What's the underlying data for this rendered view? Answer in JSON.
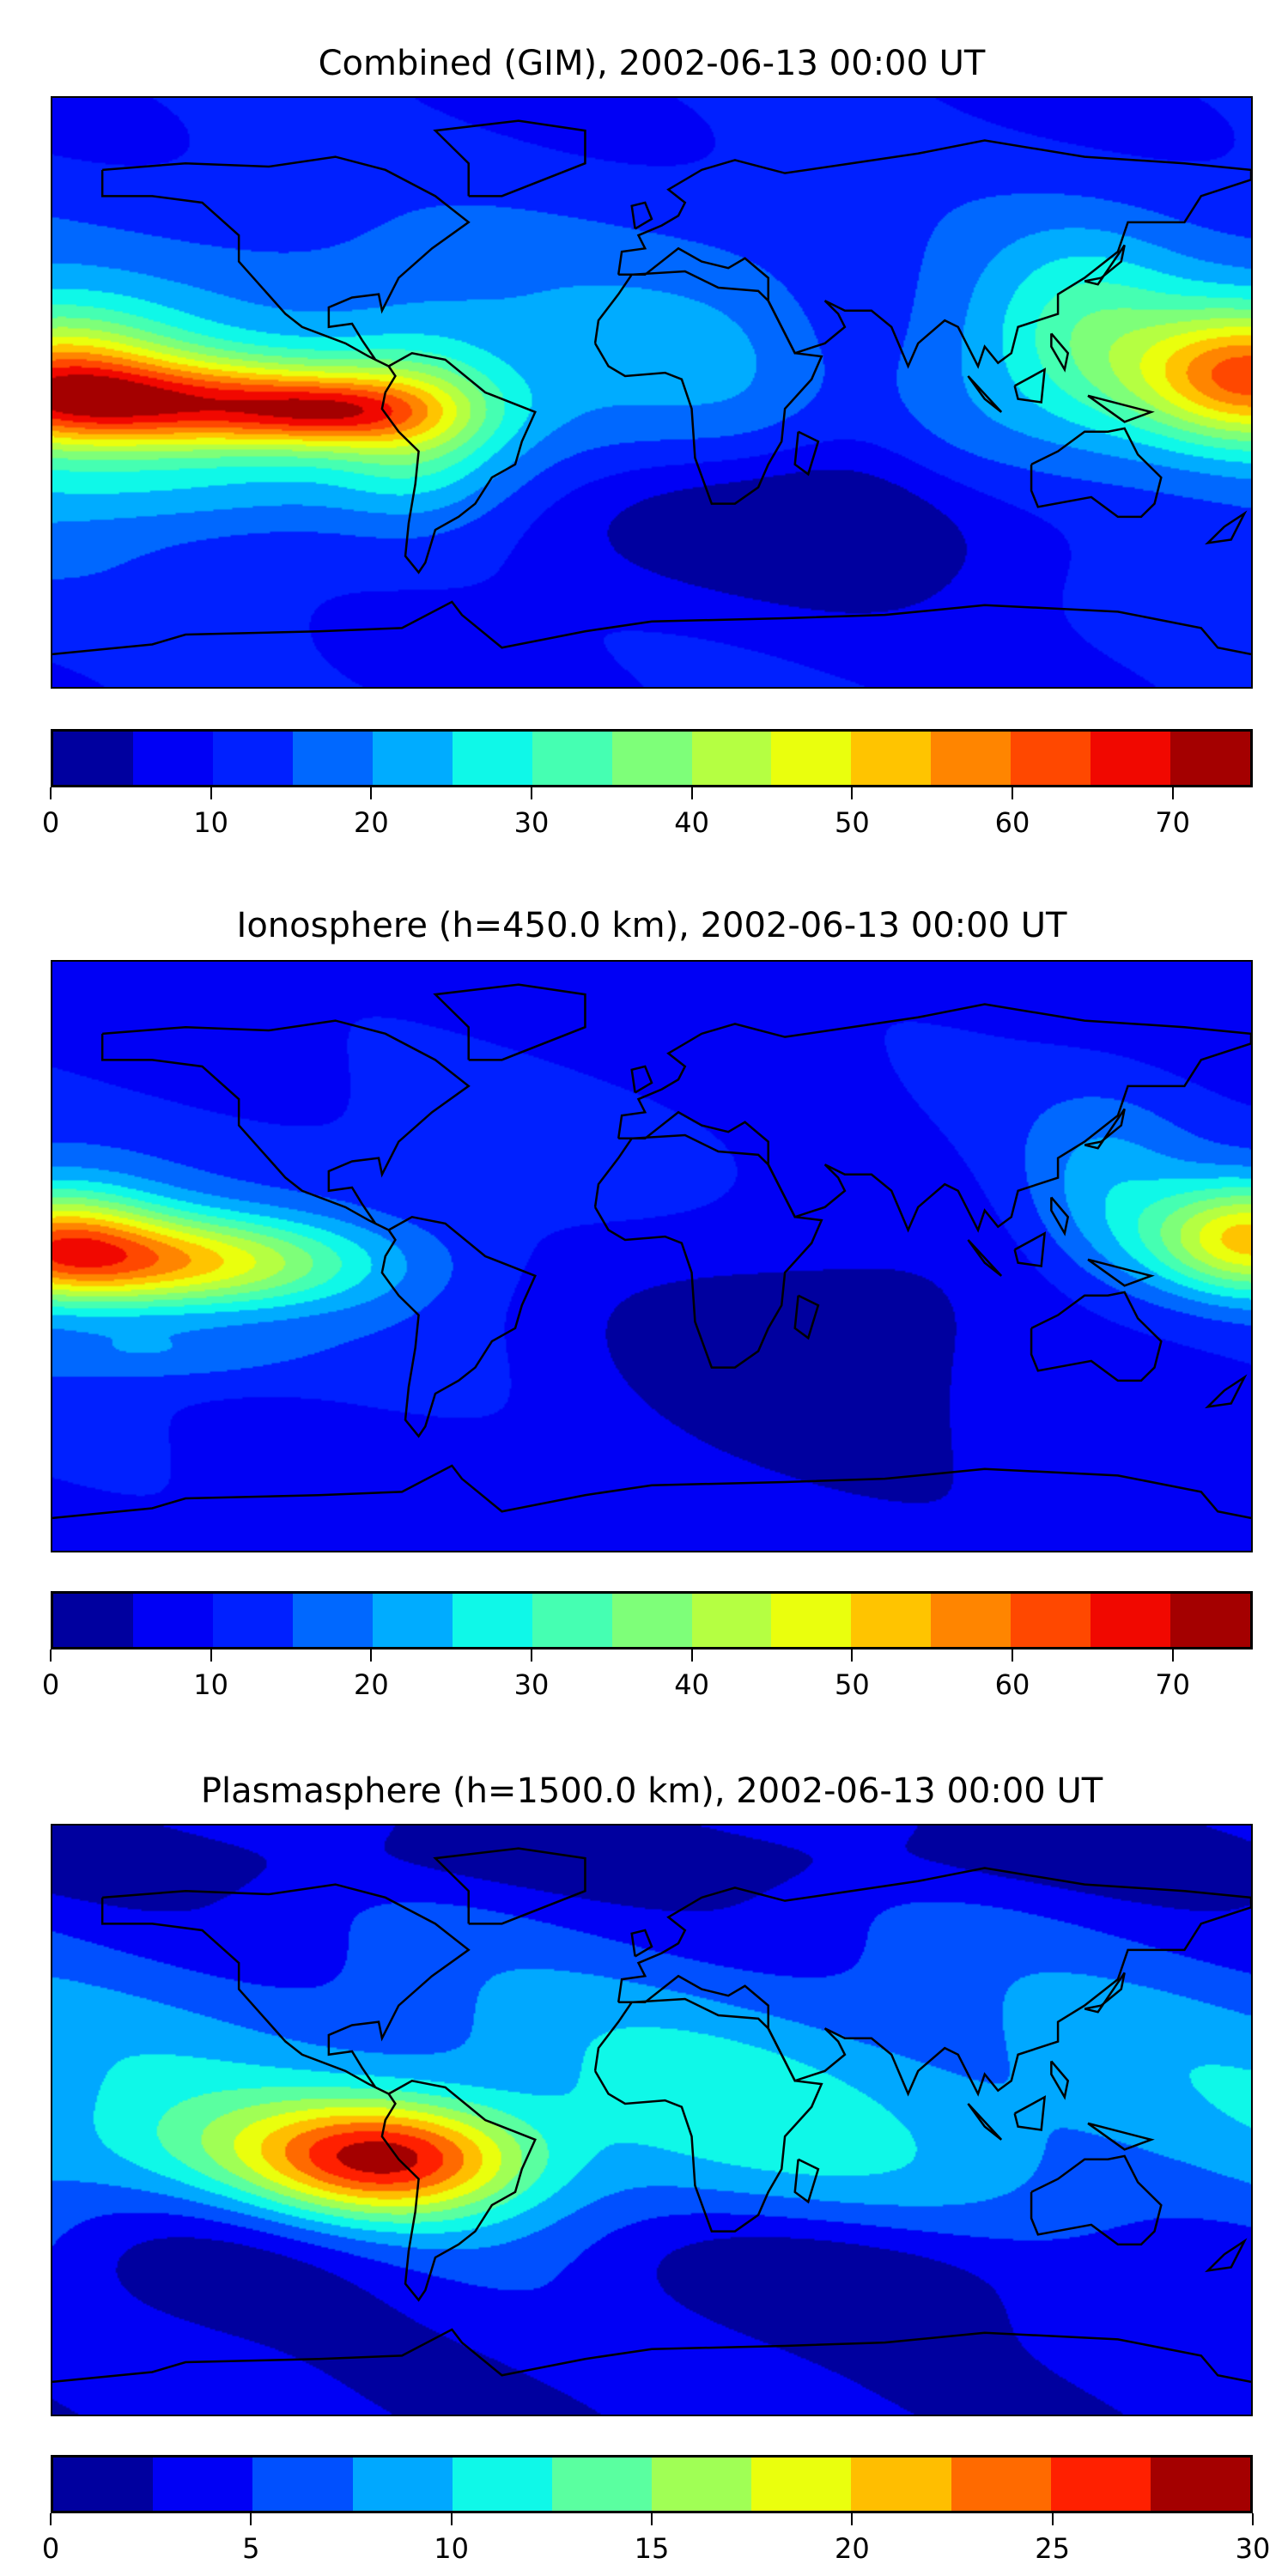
{
  "chart_data": [
    {
      "type": "heatmap",
      "title": "Combined (GIM), 2002-06-13 00:00 UT",
      "lon_range": [
        -180,
        180
      ],
      "lat_range": [
        -90,
        90
      ],
      "levels": [
        0,
        5,
        10,
        15,
        20,
        25,
        30,
        35,
        40,
        45,
        50,
        55,
        60,
        65,
        70,
        75
      ],
      "colors": [
        "#00009f",
        "#0000f5",
        "#0020ff",
        "#0068ff",
        "#00acff",
        "#0ff8e8",
        "#45ffb2",
        "#7eff79",
        "#b5ff42",
        "#eaff0d",
        "#ffc400",
        "#ff8500",
        "#ff4800",
        "#f10800",
        "#a40000"
      ],
      "colorbar_ticks": [
        "0",
        "10",
        "20",
        "30",
        "40",
        "50",
        "60",
        "70"
      ],
      "colorbar_tick_values": [
        0,
        10,
        20,
        30,
        40,
        50,
        60,
        70
      ],
      "field": {
        "base_equator": 22,
        "base_pole": 10,
        "features": [
          {
            "lon": -140,
            "lat": -4,
            "slon": 45,
            "slat": 10,
            "amp": 40
          },
          {
            "lon": -95,
            "lat": -6,
            "slon": 22,
            "slat": 7,
            "amp": 20
          },
          {
            "lon": -70,
            "lat": -10,
            "slon": 18,
            "slat": 18,
            "amp": 15
          },
          {
            "lon": 180,
            "lat": 5,
            "slon": 25,
            "slat": 14,
            "amp": 40
          },
          {
            "lon": -180,
            "lat": 5,
            "slon": 25,
            "slat": 14,
            "amp": 30
          },
          {
            "lon": 130,
            "lat": 20,
            "slon": 20,
            "slat": 20,
            "amp": 12
          },
          {
            "lon": 40,
            "lat": -40,
            "slon": 70,
            "slat": 18,
            "amp": -16
          },
          {
            "lon": 60,
            "lat": 0,
            "slon": 20,
            "slat": 30,
            "amp": -8
          },
          {
            "lon": -150,
            "lat": -30,
            "slon": 40,
            "slat": 8,
            "amp": 6
          }
        ]
      }
    },
    {
      "type": "heatmap",
      "title": "Ionosphere  (h=450.0 km), 2002-06-13 00:00 UT",
      "lon_range": [
        -180,
        180
      ],
      "lat_range": [
        -90,
        90
      ],
      "levels": [
        0,
        5,
        10,
        15,
        20,
        25,
        30,
        35,
        40,
        45,
        50,
        55,
        60,
        65,
        70,
        75
      ],
      "colors": [
        "#00009f",
        "#0000f5",
        "#0020ff",
        "#0068ff",
        "#00acff",
        "#0ff8e8",
        "#45ffb2",
        "#7eff79",
        "#b5ff42",
        "#eaff0d",
        "#ffc400",
        "#ff8500",
        "#ff4800",
        "#f10800",
        "#a40000"
      ],
      "colorbar_ticks": [
        "0",
        "10",
        "20",
        "30",
        "40",
        "50",
        "60",
        "70"
      ],
      "colorbar_tick_values": [
        0,
        10,
        20,
        30,
        40,
        50,
        60,
        70
      ],
      "field": {
        "base_equator": 14,
        "base_pole": 8,
        "features": [
          {
            "lon": -145,
            "lat": -2,
            "slon": 40,
            "slat": 10,
            "amp": 36
          },
          {
            "lon": 180,
            "lat": 5,
            "slon": 22,
            "slat": 12,
            "amp": 38
          },
          {
            "lon": -180,
            "lat": 5,
            "slon": 22,
            "slat": 12,
            "amp": 32
          },
          {
            "lon": 135,
            "lat": 20,
            "slon": 18,
            "slat": 20,
            "amp": 10
          },
          {
            "lon": 50,
            "lat": -20,
            "slon": 60,
            "slat": 30,
            "amp": -12
          },
          {
            "lon": -150,
            "lat": -30,
            "slon": 30,
            "slat": 6,
            "amp": 8
          }
        ]
      }
    },
    {
      "type": "heatmap",
      "title": "Plasmasphere (h=1500.0 km), 2002-06-13 00:00 UT",
      "lon_range": [
        -180,
        180
      ],
      "lat_range": [
        -90,
        90
      ],
      "levels": [
        0,
        2.5,
        5,
        7.5,
        10,
        12.5,
        15,
        17.5,
        20,
        22.5,
        25,
        27.5,
        30
      ],
      "colors": [
        "#00009f",
        "#0000f5",
        "#0050ff",
        "#00a8ff",
        "#0ff8e8",
        "#5affa0",
        "#a0ff55",
        "#eaff0d",
        "#ffbe00",
        "#ff6a00",
        "#ff2000",
        "#a40000"
      ],
      "colorbar_ticks": [
        "0",
        "5",
        "10",
        "15",
        "20",
        "25",
        "30"
      ],
      "colorbar_tick_values": [
        0,
        5,
        10,
        15,
        20,
        25,
        30
      ],
      "field": {
        "base_equator": 9,
        "base_pole": 3,
        "features": [
          {
            "lon": -78,
            "lat": -12,
            "slon": 28,
            "slat": 12,
            "amp": 17
          },
          {
            "lon": -120,
            "lat": -8,
            "slon": 40,
            "slat": 12,
            "amp": 4
          },
          {
            "lon": 20,
            "lat": 0,
            "slon": 40,
            "slat": 25,
            "amp": 2
          },
          {
            "lon": 60,
            "lat": -45,
            "slon": 70,
            "slat": 15,
            "amp": -5
          },
          {
            "lon": -140,
            "lat": -45,
            "slon": 40,
            "slat": 15,
            "amp": -4
          },
          {
            "lon": 0,
            "lat": 80,
            "slon": 180,
            "slat": 8,
            "amp": -2
          }
        ]
      }
    }
  ]
}
